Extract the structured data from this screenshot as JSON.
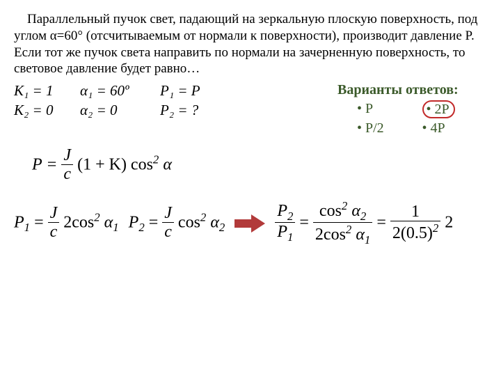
{
  "problem_text": "Параллельный пучок свет, падающий на зеркальную плоскую поверхность, под углом α=60° (отсчитываемым от нормали к поверхности), производит давление P. Если тот же пучок света направить по нормали на зачерненную поверхность, то световое давление будет равно…",
  "given": {
    "k1": "K₁ = 1",
    "a1": "α₁ = 60º",
    "p1": "P₁ = P",
    "k2": "K₂ = 0",
    "a2": "α₂ = 0",
    "p2": "P₂ = ?"
  },
  "answers": {
    "title": "Варианты ответов:",
    "opts": [
      "• P",
      "• 2P",
      "• P/2",
      "• 4P"
    ],
    "correct_index": 1
  },
  "formula1": {
    "lhs": "P =",
    "num": "J",
    "den": "c",
    "tail": "(1 + K) cos",
    "sup": "2",
    "alpha": " α"
  },
  "row2": {
    "p1": {
      "lhs": "P",
      "sub": "1",
      "eq": " = ",
      "num": "J",
      "den": "c",
      "mid": "2cos",
      "sup": "2",
      "a": " α",
      "asub": "1"
    },
    "p2": {
      "lhs": "P",
      "sub": "2",
      "eq": " = ",
      "num": "J",
      "den": "c",
      "mid": "cos",
      "sup": "2",
      "a": " α",
      "asub": "2"
    },
    "ratio": {
      "lnum": "P",
      "lnum_sub": "2",
      "lden": "P",
      "lden_sub": "1",
      "rnum_a": "cos",
      "rnum_sup": "2",
      "rnum_b": " α",
      "rnum_sub": "2",
      "rden_a": "2cos",
      "rden_sup": "2",
      "rden_b": " α",
      "rden_sub": "1",
      "r2num": "1",
      "r2den": "2(0.5)",
      "r2den_sup": "2",
      "result": " 2"
    }
  },
  "colors": {
    "answer_text": "#3b5a2a",
    "circle": "#c22a2a",
    "arrow": "#b23a3a"
  }
}
